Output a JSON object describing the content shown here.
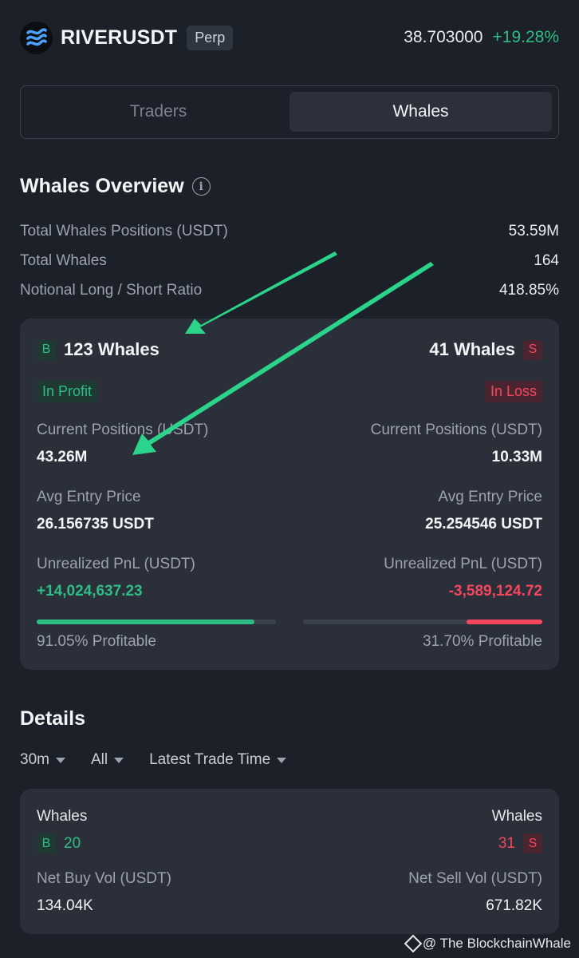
{
  "header": {
    "symbol": "RIVERUSDT",
    "contract_type": "Perp",
    "price": "38.703000",
    "change": "+19.28%",
    "logo_icon": "river-logo-icon"
  },
  "tabs": [
    {
      "label": "Traders",
      "active": false
    },
    {
      "label": "Whales",
      "active": true
    }
  ],
  "overview": {
    "title": "Whales Overview",
    "stats": [
      {
        "label": "Total Whales Positions (USDT)",
        "value": "53.59M"
      },
      {
        "label": "Total Whales",
        "value": "164"
      },
      {
        "label": "Notional Long / Short Ratio",
        "value": "418.85%"
      }
    ]
  },
  "summary": {
    "buy": {
      "badge": "B",
      "count": "123 Whales",
      "status": "In Profit",
      "positions_label": "Current Positions (USDT)",
      "positions_value": "43.26M",
      "entry_label": "Avg Entry Price",
      "entry_value": "26.156735 USDT",
      "pnl_label": "Unrealized PnL (USDT)",
      "pnl_value": "+14,024,637.23",
      "profitable": "91.05% Profitable",
      "profitable_fraction": 0.9105
    },
    "sell": {
      "badge": "S",
      "count": "41 Whales",
      "status": "In Loss",
      "positions_label": "Current Positions (USDT)",
      "positions_value": "10.33M",
      "entry_label": "Avg Entry Price",
      "entry_value": "25.254546 USDT",
      "pnl_label": "Unrealized PnL (USDT)",
      "pnl_value": "-3,589,124.72",
      "profitable": "31.70% Profitable",
      "profitable_fraction": 0.317
    }
  },
  "details": {
    "title": "Details",
    "filters": [
      "30m",
      "All",
      "Latest Trade Time"
    ],
    "card": {
      "left_label": "Whales",
      "left_badge": "B",
      "left_count": "20",
      "right_label": "Whales",
      "right_badge": "S",
      "right_count": "31",
      "buy_vol_label": "Net Buy Vol (USDT)",
      "buy_vol_value": "134.04K",
      "sell_vol_label": "Net Sell Vol (USDT)",
      "sell_vol_value": "671.82K"
    }
  },
  "watermark": "@ The BlockchainWhale",
  "colors": {
    "background": "#1b2029",
    "card": "#2a2f39",
    "green": "#2ebd85",
    "red": "#f6465d",
    "arrow": "#2bd48a"
  }
}
